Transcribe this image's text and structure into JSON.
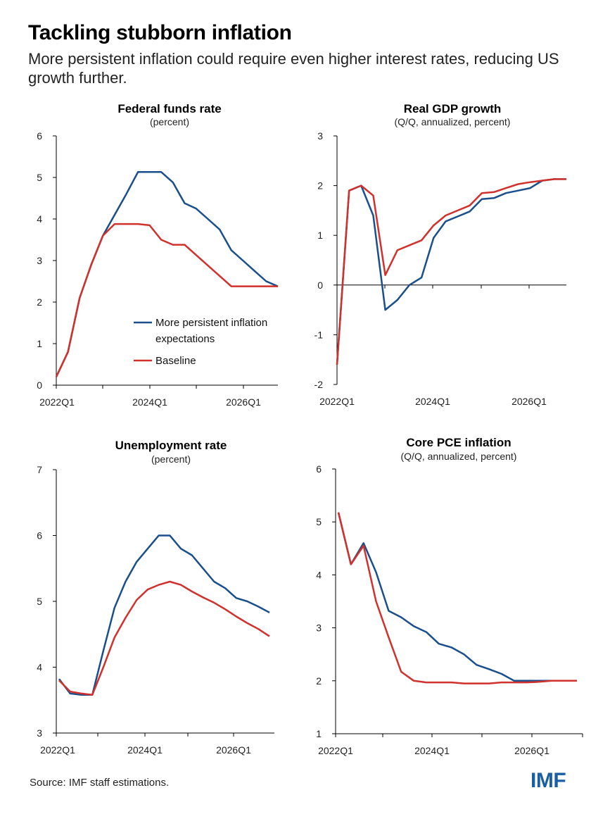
{
  "header": {
    "title": "Tackling stubborn inflation",
    "subtitle": "More persistent inflation could require even higher interest rates, reducing US growth further."
  },
  "footer": {
    "source": "Source: IMF staff estimations.",
    "logo": "IMF"
  },
  "colors": {
    "persistent": "#1a4f8b",
    "baseline": "#d0312d"
  },
  "legend": {
    "persistent_line1": "More persistent inflation",
    "persistent_line2": "expectations",
    "baseline": "Baseline"
  },
  "chart_data": [
    {
      "type": "line",
      "title": "Federal funds rate",
      "subtitle": "(percent)",
      "ylim": [
        0,
        6
      ],
      "yticks": [
        "0",
        "1",
        "2",
        "3",
        "4",
        "5",
        "6"
      ],
      "xlabels": [
        "2022Q1",
        "2024Q1",
        "2026Q1"
      ],
      "series": [
        {
          "name": "More persistent inflation expectations",
          "values": [
            0.2,
            0.8,
            2.1,
            2.9,
            3.6,
            4.1,
            4.6,
            5.13,
            5.13,
            5.13,
            4.88,
            4.38,
            4.25,
            4.0,
            3.75,
            3.25,
            3.0,
            2.75,
            2.5,
            2.38
          ]
        },
        {
          "name": "Baseline",
          "values": [
            0.2,
            0.8,
            2.1,
            2.9,
            3.6,
            3.88,
            3.88,
            3.88,
            3.85,
            3.5,
            3.38,
            3.38,
            3.13,
            2.88,
            2.63,
            2.38,
            2.38,
            2.38,
            2.38,
            2.38
          ]
        }
      ]
    },
    {
      "type": "line",
      "title": "Real GDP growth",
      "subtitle": "(Q/Q, annualized, percent)",
      "ylim": [
        -2,
        3
      ],
      "yticks": [
        "-2",
        "-1",
        "0",
        "1",
        "2",
        "3"
      ],
      "xlabels": [
        "2022Q1",
        "2024Q1",
        "2026Q1"
      ],
      "series": [
        {
          "name": "More persistent inflation expectations",
          "values": [
            -1.6,
            1.9,
            2.0,
            1.4,
            -0.5,
            -0.3,
            0.0,
            0.15,
            0.95,
            1.28,
            1.38,
            1.48,
            1.73,
            1.75,
            1.85,
            1.9,
            1.95,
            2.1,
            2.13,
            2.13
          ]
        },
        {
          "name": "Baseline",
          "values": [
            -1.6,
            1.9,
            2.0,
            1.8,
            0.2,
            0.7,
            0.8,
            0.9,
            1.2,
            1.4,
            1.5,
            1.6,
            1.85,
            1.87,
            1.95,
            2.03,
            2.07,
            2.1,
            2.13,
            2.13
          ]
        }
      ]
    },
    {
      "type": "line",
      "title": "Unemployment rate",
      "subtitle": "(percent)",
      "ylim": [
        3,
        7
      ],
      "yticks": [
        "3",
        "4",
        "5",
        "6",
        "7"
      ],
      "xlabels": [
        "2022Q1",
        "2024Q1",
        "2026Q1"
      ],
      "series": [
        {
          "name": "More persistent inflation expectations",
          "values": [
            3.82,
            3.6,
            3.58,
            3.58,
            4.25,
            4.9,
            5.3,
            5.6,
            5.8,
            6.0,
            6.0,
            5.8,
            5.7,
            5.5,
            5.3,
            5.2,
            5.05,
            5.0,
            4.92,
            4.83
          ]
        },
        {
          "name": "Baseline",
          "values": [
            3.8,
            3.63,
            3.6,
            3.58,
            4.0,
            4.45,
            4.75,
            5.02,
            5.18,
            5.25,
            5.3,
            5.25,
            5.15,
            5.06,
            4.98,
            4.88,
            4.77,
            4.67,
            4.58,
            4.47
          ]
        }
      ]
    },
    {
      "type": "line",
      "title": "Core PCE inflation",
      "subtitle": "(Q/Q, annualized, percent)",
      "ylim": [
        1,
        6
      ],
      "yticks": [
        "1",
        "2",
        "3",
        "4",
        "5",
        "6"
      ],
      "xlabels": [
        "2022Q1",
        "2024Q1",
        "2026Q1"
      ],
      "series": [
        {
          "name": "More persistent inflation expectations",
          "values": [
            5.18,
            4.2,
            4.6,
            4.05,
            3.32,
            3.2,
            3.03,
            2.92,
            2.7,
            2.63,
            2.5,
            2.3,
            2.22,
            2.13,
            2.0,
            2.0,
            2.0,
            2.0,
            2.0,
            2.0
          ]
        },
        {
          "name": "Baseline",
          "values": [
            5.18,
            4.2,
            4.55,
            3.5,
            2.82,
            2.17,
            2.0,
            1.97,
            1.97,
            1.97,
            1.95,
            1.95,
            1.95,
            1.97,
            1.97,
            1.97,
            1.98,
            2.0,
            2.0,
            2.0
          ]
        }
      ]
    }
  ]
}
